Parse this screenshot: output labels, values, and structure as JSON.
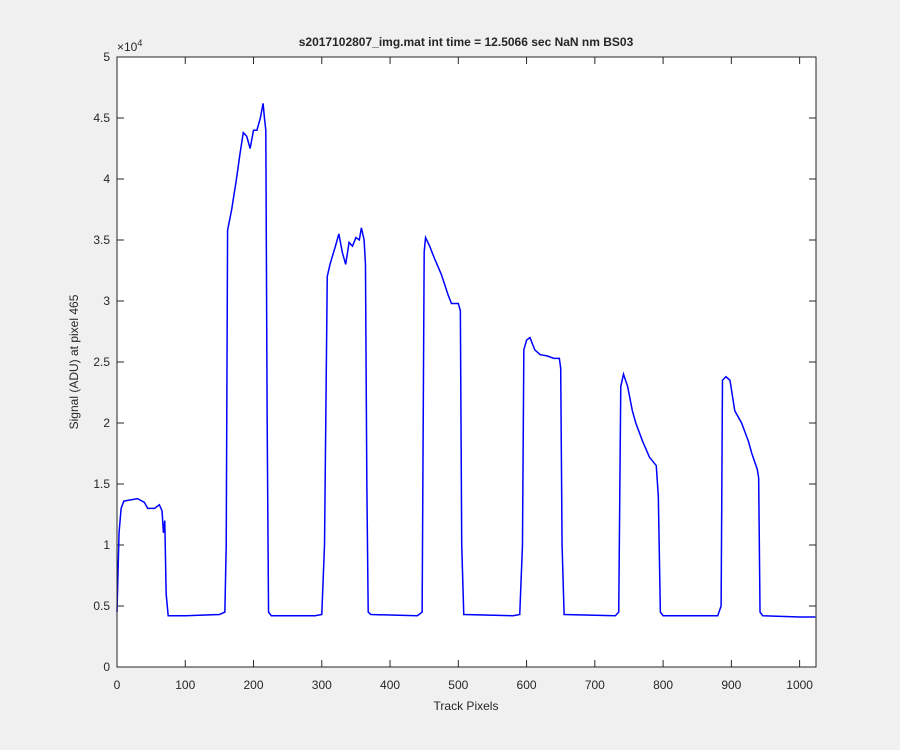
{
  "chart_data": {
    "type": "line",
    "title": "s2017102807_img.mat int time = 12.5066 sec  NaN nm BS03",
    "x_label": "Track Pixels",
    "y_label": "Signal (ADU) at pixel 465",
    "y_multiplier": {
      "base": "×10",
      "exponent": "4"
    },
    "xlim": [
      0,
      1024
    ],
    "xticks": [
      0,
      100,
      200,
      300,
      400,
      500,
      600,
      700,
      800,
      900,
      1000
    ],
    "ylim": [
      0,
      5
    ],
    "yticks": [
      0,
      0.5,
      1,
      1.5,
      2,
      2.5,
      3,
      3.5,
      4,
      4.5,
      5
    ],
    "x": [
      0,
      3,
      6,
      10,
      20,
      30,
      40,
      45,
      55,
      62,
      66,
      68,
      70,
      72,
      75,
      100,
      150,
      158,
      160,
      162,
      168,
      175,
      180,
      185,
      190,
      195,
      200,
      205,
      210,
      214,
      216,
      218,
      220,
      222,
      226,
      290,
      300,
      304,
      308,
      312,
      320,
      325,
      330,
      335,
      340,
      345,
      350,
      355,
      358,
      362,
      364,
      366,
      368,
      372,
      440,
      447,
      450,
      452,
      458,
      465,
      475,
      485,
      490,
      500,
      503,
      505,
      508,
      580,
      590,
      594,
      596,
      600,
      605,
      612,
      620,
      630,
      640,
      648,
      650,
      652,
      655,
      730,
      735,
      738,
      742,
      748,
      755,
      760,
      770,
      780,
      790,
      793,
      796,
      800,
      880,
      885,
      887,
      892,
      898,
      905,
      915,
      925,
      930,
      938,
      940,
      942,
      946,
      1000,
      1023
    ],
    "series": [
      {
        "color": "#0000ff",
        "values": [
          0.45,
          1.1,
          1.3,
          1.36,
          1.37,
          1.38,
          1.35,
          1.3,
          1.3,
          1.33,
          1.28,
          1.1,
          1.2,
          0.6,
          0.42,
          0.42,
          0.43,
          0.45,
          1.0,
          3.58,
          3.75,
          4.0,
          4.2,
          4.38,
          4.35,
          4.25,
          4.4,
          4.4,
          4.5,
          4.62,
          4.5,
          4.4,
          2.0,
          0.45,
          0.42,
          0.42,
          0.43,
          1.0,
          3.2,
          3.3,
          3.45,
          3.55,
          3.4,
          3.3,
          3.48,
          3.45,
          3.52,
          3.5,
          3.6,
          3.5,
          3.3,
          1.5,
          0.45,
          0.43,
          0.42,
          0.45,
          3.4,
          3.52,
          3.45,
          3.35,
          3.22,
          3.05,
          2.98,
          2.98,
          2.92,
          1.0,
          0.43,
          0.42,
          0.43,
          1.0,
          2.6,
          2.68,
          2.7,
          2.6,
          2.56,
          2.55,
          2.53,
          2.53,
          2.45,
          1.0,
          0.43,
          0.42,
          0.45,
          2.3,
          2.4,
          2.3,
          2.1,
          2.0,
          1.85,
          1.72,
          1.65,
          1.4,
          0.45,
          0.42,
          0.42,
          0.5,
          2.35,
          2.38,
          2.35,
          2.1,
          2.0,
          1.85,
          1.75,
          1.62,
          1.55,
          0.45,
          0.42,
          0.41,
          0.41
        ]
      }
    ]
  }
}
